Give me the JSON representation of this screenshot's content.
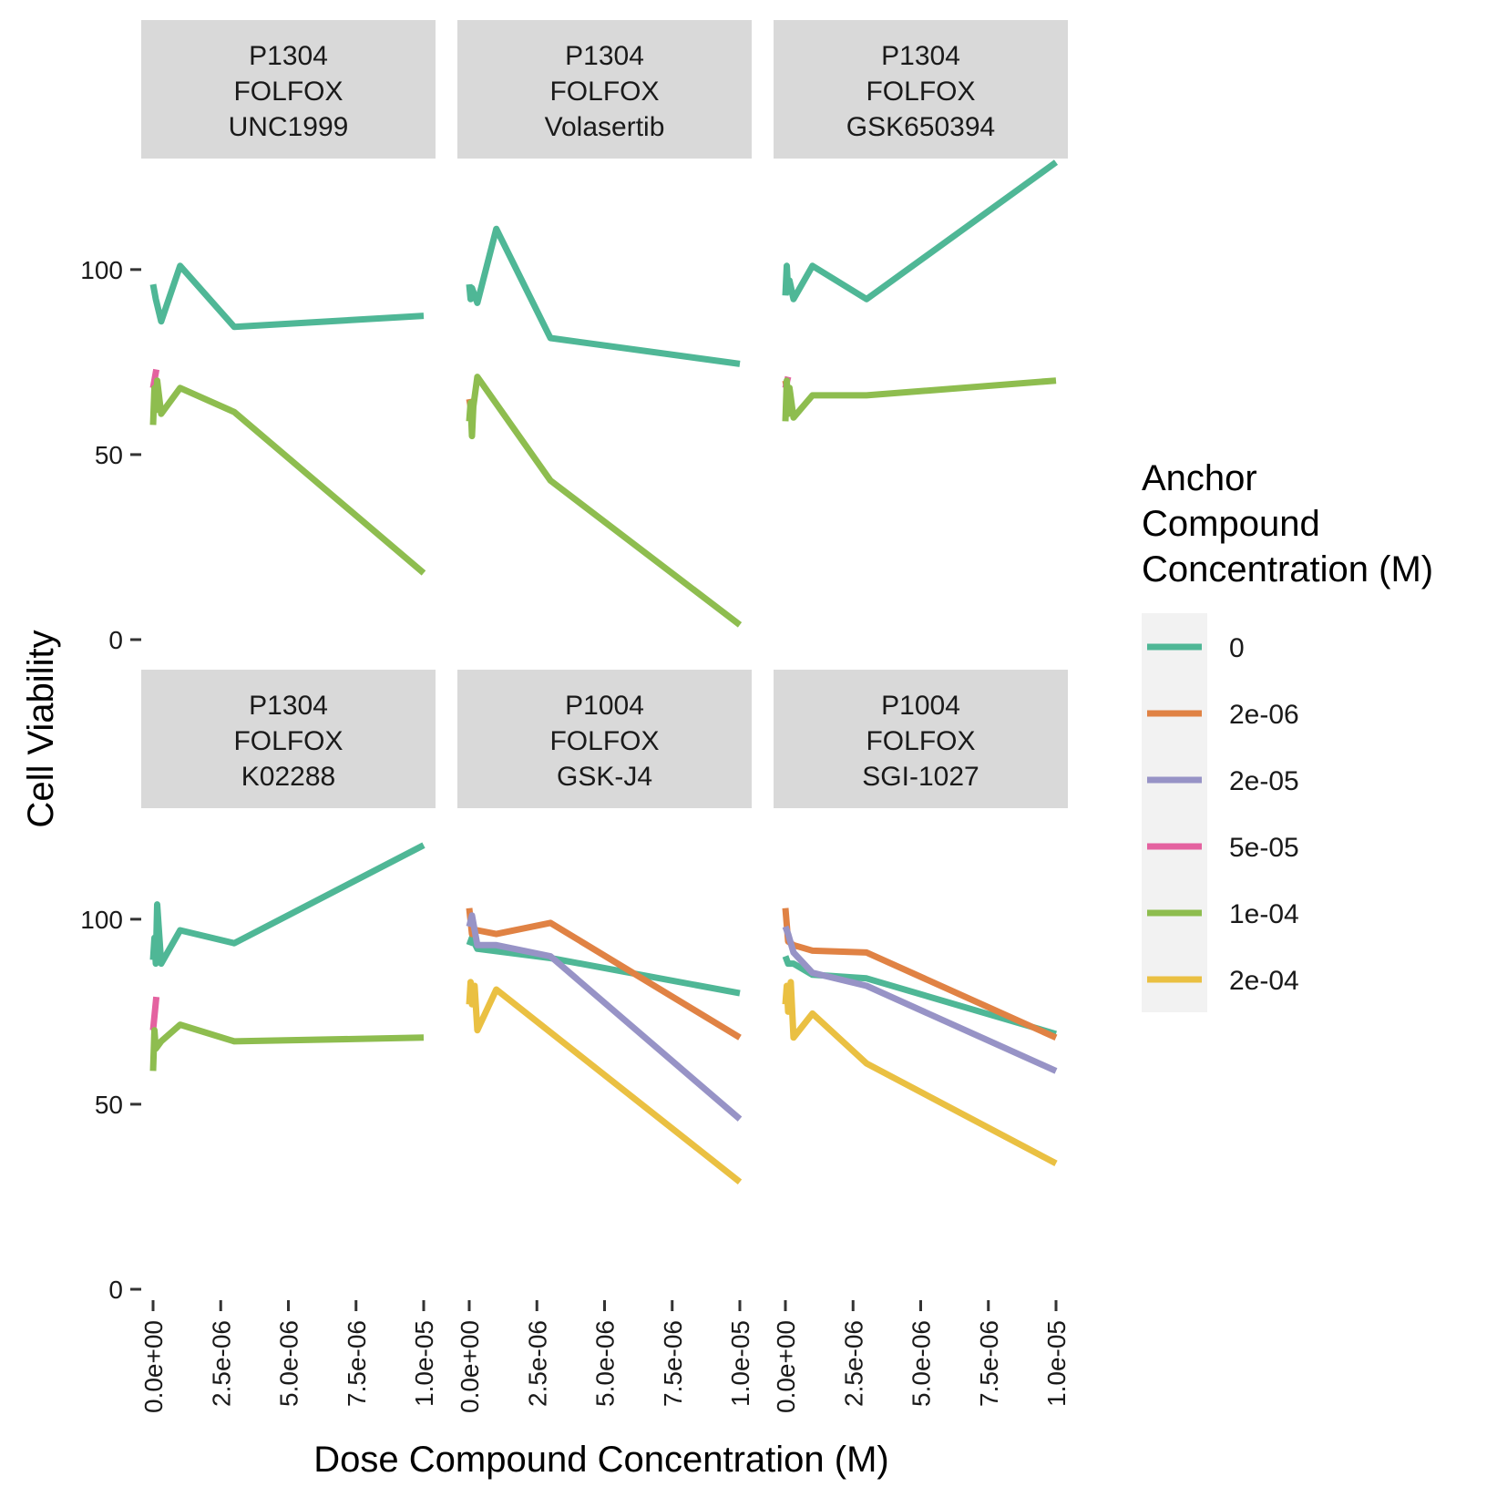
{
  "chart_data": {
    "type": "line",
    "xlabel": "Dose Compound Concentration (M)",
    "ylabel": "Cell Viability",
    "xlim": [
      0,
      1e-05
    ],
    "ylim": [
      0,
      130
    ],
    "x_ticks": [
      0,
      2.5e-06,
      5e-06,
      7.5e-06,
      1e-05
    ],
    "x_tick_labels": [
      "0.0e+00",
      "2.5e-06",
      "5.0e-06",
      "7.5e-06",
      "1.0e-05"
    ],
    "y_ticks": [
      0,
      50,
      100
    ],
    "y_tick_labels": [
      "0",
      "50",
      "100"
    ],
    "grid": false,
    "legend": {
      "title_lines": [
        "Anchor",
        "Compound",
        "Concentration (M)"
      ],
      "position": "right",
      "entries": [
        {
          "label": "0",
          "color": "#4fb796"
        },
        {
          "label": "2e-06",
          "color": "#e08244"
        },
        {
          "label": "2e-05",
          "color": "#9793c6"
        },
        {
          "label": "5e-05",
          "color": "#e462a0"
        },
        {
          "label": "1e-04",
          "color": "#8ebd4f"
        },
        {
          "label": "2e-04",
          "color": "#eac042"
        }
      ]
    },
    "panels": [
      {
        "strip": [
          "P1304",
          "FOLFOX",
          "UNC1999"
        ],
        "series": [
          {
            "anchor": "0",
            "x": [
              0,
              1e-07,
              3e-07,
              1e-06,
              3e-06,
              1e-05
            ],
            "y": [
              96,
              92,
              86,
              101,
              84.5,
              87.5
            ]
          },
          {
            "anchor": "5e-05",
            "x": [
              0,
              1.2e-07
            ],
            "y": [
              68,
              73
            ]
          },
          {
            "anchor": "1e-04",
            "x": [
              0,
              5e-08,
              1e-07,
              1.5e-07,
              3e-07,
              1e-06,
              3e-06,
              1e-05
            ],
            "y": [
              58,
              68,
              62,
              70,
              61,
              68,
              61.5,
              18
            ]
          }
        ]
      },
      {
        "strip": [
          "P1304",
          "FOLFOX",
          "Volasertib"
        ],
        "series": [
          {
            "anchor": "0",
            "x": [
              0,
              5e-08,
              1e-07,
              3e-07,
              1e-06,
              3e-06,
              1e-05
            ],
            "y": [
              96,
              92,
              95,
              91,
              111,
              81.5,
              74.5
            ]
          },
          {
            "anchor": "2e-06",
            "x": [
              0,
              1e-07
            ],
            "y": [
              65,
              61
            ]
          },
          {
            "anchor": "1e-04",
            "x": [
              0,
              5e-08,
              1e-07,
              1.5e-07,
              3e-07,
              3e-06,
              1e-05
            ],
            "y": [
              59,
              64,
              55,
              63,
              71,
              43,
              4
            ]
          }
        ]
      },
      {
        "strip": [
          "P1304",
          "FOLFOX",
          "GSK650394"
        ],
        "series": [
          {
            "anchor": "0",
            "x": [
              0,
              5e-08,
              1e-07,
              1.5e-07,
              3e-07,
              1e-06,
              3e-06,
              1e-05
            ],
            "y": [
              93,
              101,
              94,
              97,
              92,
              101,
              92,
              129
            ]
          },
          {
            "anchor": "2e-06",
            "x": [
              0,
              1e-07
            ],
            "y": [
              70,
              66
            ]
          },
          {
            "anchor": "5e-05",
            "x": [
              0,
              1e-07
            ],
            "y": [
              68,
              71
            ]
          },
          {
            "anchor": "1e-04",
            "x": [
              0,
              5e-08,
              1e-07,
              1.5e-07,
              3e-07,
              1e-06,
              3e-06,
              1e-05
            ],
            "y": [
              59,
              70,
              61,
              68,
              60,
              66,
              66,
              70
            ]
          }
        ]
      },
      {
        "strip": [
          "P1304",
          "FOLFOX",
          "K02288"
        ],
        "series": [
          {
            "anchor": "0",
            "x": [
              0,
              5e-08,
              1e-07,
              1.5e-07,
              3e-07,
              1e-06,
              3e-06,
              1e-05
            ],
            "y": [
              89,
              95,
              88,
              104,
              88,
              97,
              93.5,
              120
            ]
          },
          {
            "anchor": "5e-05",
            "x": [
              0,
              1.2e-07
            ],
            "y": [
              70,
              79
            ]
          },
          {
            "anchor": "1e-04",
            "x": [
              0,
              5e-08,
              1e-07,
              3e-07,
              1e-06,
              3e-06,
              1e-05
            ],
            "y": [
              59,
              70,
              65,
              67,
              71.5,
              67,
              68
            ]
          }
        ]
      },
      {
        "strip": [
          "P1004",
          "FOLFOX",
          "GSK-J4"
        ],
        "series": [
          {
            "anchor": "0",
            "x": [
              0,
              1e-07,
              3e-07,
              3e-06,
              1e-05
            ],
            "y": [
              93,
              95,
              92,
              89.5,
              80
            ]
          },
          {
            "anchor": "2e-06",
            "x": [
              0,
              1e-07,
              3e-07,
              1e-06,
              3e-06,
              1e-05
            ],
            "y": [
              103,
              96,
              97,
              96,
              99,
              68
            ]
          },
          {
            "anchor": "2e-05",
            "x": [
              0,
              1e-07,
              3e-07,
              1e-06,
              3e-06,
              1e-05
            ],
            "y": [
              98,
              101,
              93,
              93,
              90,
              46
            ]
          },
          {
            "anchor": "2e-04",
            "x": [
              0,
              5e-08,
              1e-07,
              2e-07,
              3e-07,
              1e-06,
              1e-05
            ],
            "y": [
              77,
              83,
              77,
              82,
              70,
              81,
              29
            ]
          }
        ]
      },
      {
        "strip": [
          "P1004",
          "FOLFOX",
          "SGI-1027"
        ],
        "series": [
          {
            "anchor": "0",
            "x": [
              0,
              1e-07,
              3e-07,
              1e-06,
              3e-06,
              1e-05
            ],
            "y": [
              90,
              88,
              88,
              85,
              84,
              69
            ]
          },
          {
            "anchor": "2e-06",
            "x": [
              0,
              1e-07,
              3e-07,
              1e-06,
              3e-06,
              1e-05
            ],
            "y": [
              103,
              94,
              93,
              91.5,
              91,
              68
            ]
          },
          {
            "anchor": "2e-05",
            "x": [
              0,
              1e-07,
              3e-07,
              1e-06,
              3e-06,
              1e-05
            ],
            "y": [
              98,
              96,
              91,
              85.5,
              82,
              59
            ]
          },
          {
            "anchor": "2e-04",
            "x": [
              0,
              5e-08,
              1e-07,
              2e-07,
              3e-07,
              1e-06,
              3e-06,
              1e-05
            ],
            "y": [
              77,
              82,
              75,
              83,
              68,
              74.5,
              61,
              34
            ]
          }
        ]
      }
    ]
  }
}
